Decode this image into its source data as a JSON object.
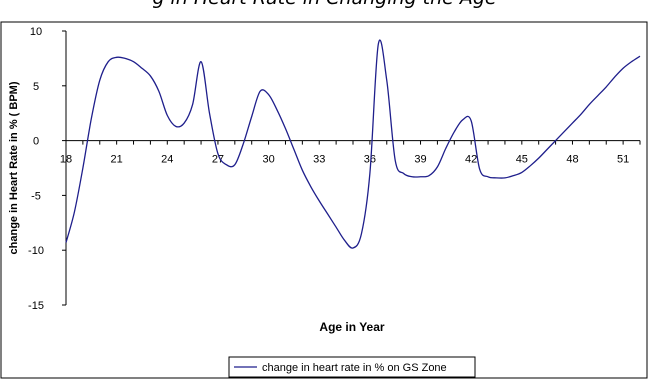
{
  "chart_data": {
    "type": "line",
    "title": "g in Heart Rate in Changing the Age",
    "xlabel": "Age in Year",
    "ylabel": "change in Heart Rate in % ( BPM)",
    "xlim": [
      18,
      52
    ],
    "ylim": [
      -15,
      10
    ],
    "x_ticks": [
      "18",
      "21",
      "24",
      "27",
      "30",
      "33",
      "36",
      "39",
      "42",
      "45",
      "48",
      "51"
    ],
    "y_ticks": [
      "10",
      "5",
      "0",
      "-5",
      "-10",
      "-15"
    ],
    "grid": false,
    "legend_position": "bottom-center",
    "series": [
      {
        "name": "change  in heart rate in % on GS Zone",
        "color": "#1f1f8c",
        "x": [
          18,
          18.5,
          19,
          19.5,
          20,
          20.5,
          21,
          21.5,
          22,
          22.5,
          23,
          23.5,
          24,
          24.5,
          25,
          25.5,
          26,
          26.5,
          27,
          27.5,
          28,
          28.5,
          29,
          29.5,
          30,
          30.5,
          31,
          31.5,
          32,
          32.5,
          33,
          33.5,
          34,
          34.5,
          35,
          35.5,
          36,
          36.5,
          37,
          37.5,
          38,
          38.5,
          39,
          39.5,
          40,
          40.5,
          41,
          41.5,
          42,
          42.5,
          43,
          43.5,
          44,
          44.5,
          45,
          45.5,
          46,
          46.5,
          47,
          47.5,
          48,
          48.5,
          49,
          49.5,
          50,
          50.5,
          51,
          51.5,
          52
        ],
        "values": [
          -9.3,
          -6.5,
          -2.5,
          2,
          5.5,
          7.2,
          7.6,
          7.5,
          7.2,
          6.6,
          5.9,
          4.5,
          2.3,
          1.3,
          1.6,
          3.3,
          7.2,
          2.5,
          -1.2,
          -2.2,
          -2.2,
          -0.3,
          2.2,
          4.5,
          4.2,
          2.8,
          1.1,
          -0.8,
          -2.7,
          -4.2,
          -5.5,
          -6.7,
          -7.9,
          -9.1,
          -9.8,
          -8.5,
          -3,
          8.8,
          5.5,
          -1.8,
          -3,
          -3.3,
          -3.3,
          -3.2,
          -2.4,
          -0.7,
          0.8,
          1.9,
          1.8,
          -2.6,
          -3.3,
          -3.4,
          -3.4,
          -3.2,
          -2.9,
          -2.3,
          -1.6,
          -0.8,
          0,
          0.8,
          1.6,
          2.4,
          3.3,
          4.1,
          4.9,
          5.8,
          6.6,
          7.2,
          7.7
        ]
      }
    ]
  }
}
